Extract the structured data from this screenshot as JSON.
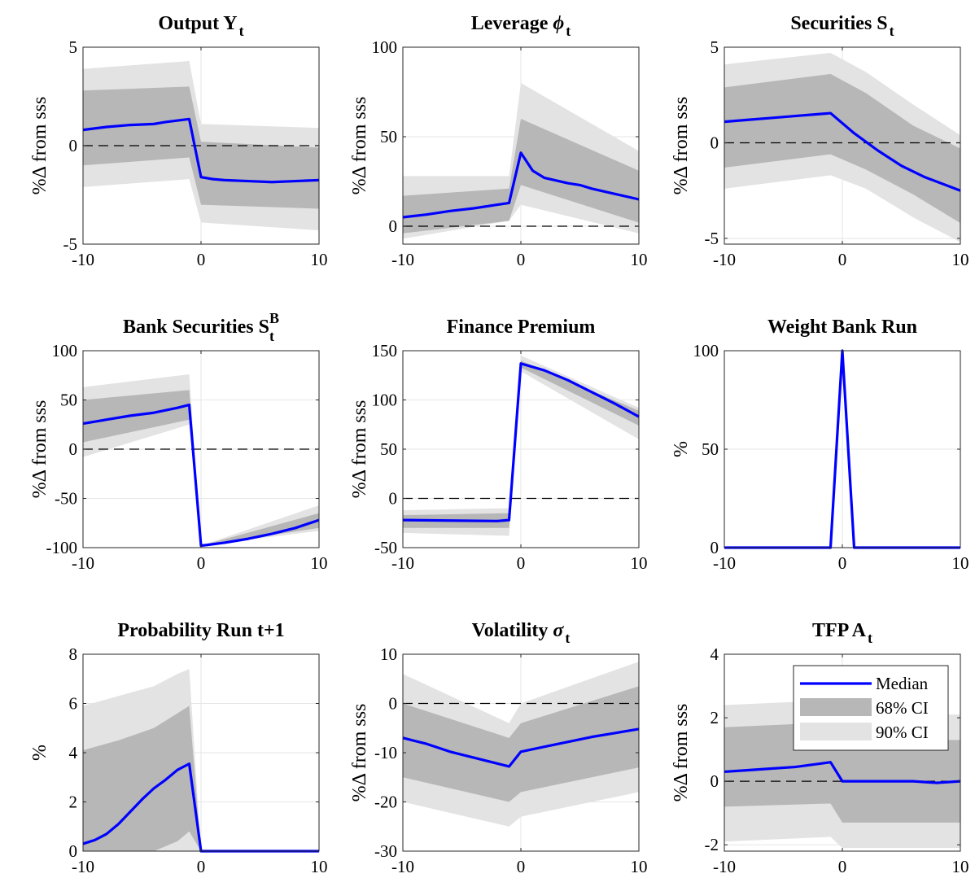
{
  "colors": {
    "median": "#0000ff",
    "ci68": "#b7b7b7",
    "ci90": "#e3e3e3",
    "zero": "#000000"
  },
  "legend": {
    "median": "Median",
    "ci68": "68% CI",
    "ci90": "90% CI"
  },
  "chart_data": [
    {
      "type": "line",
      "title": "Output Y",
      "title_sub": "t",
      "ylabel": "%Δ from sss",
      "xlim": [
        -10,
        10
      ],
      "ylim": [
        -5,
        5
      ],
      "xticks": [
        "-10",
        "0",
        "10"
      ],
      "yticks": [
        "5",
        "0",
        "-5"
      ],
      "series": [
        {
          "name": "Median",
          "x": [
            -10,
            -8,
            -6,
            -4,
            -3,
            -1,
            0,
            1,
            2,
            4,
            6,
            8,
            10
          ],
          "y": [
            0.8,
            0.95,
            1.05,
            1.1,
            1.2,
            1.35,
            -1.6,
            -1.7,
            -1.75,
            -1.8,
            -1.85,
            -1.8,
            -1.75
          ]
        },
        {
          "name": "68% CI",
          "x": [
            -10,
            -1,
            0,
            10
          ],
          "upper": [
            2.8,
            3.0,
            0.2,
            -0.1
          ],
          "lower": [
            -1.0,
            -0.6,
            -3.0,
            -3.2
          ]
        },
        {
          "name": "90% CI",
          "x": [
            -10,
            -1,
            0,
            10
          ],
          "upper": [
            3.9,
            4.3,
            1.1,
            0.9
          ],
          "lower": [
            -2.1,
            -1.7,
            -3.9,
            -4.3
          ]
        }
      ]
    },
    {
      "type": "line",
      "title": "Leverage",
      "title_greek": "ϕ",
      "title_sub": "t",
      "ylabel": "%Δ from sss",
      "xlim": [
        -10,
        10
      ],
      "ylim": [
        -10,
        100
      ],
      "xticks": [
        "-10",
        "0",
        "10"
      ],
      "yticks": [
        "100",
        "50",
        "0"
      ],
      "series": [
        {
          "name": "Median",
          "x": [
            -10,
            -8,
            -6,
            -4,
            -2,
            -1,
            0,
            1,
            2,
            4,
            5,
            6,
            8,
            10
          ],
          "y": [
            5,
            6.5,
            8.5,
            10,
            12,
            13,
            41,
            31,
            27,
            24,
            23,
            21,
            18,
            15
          ]
        },
        {
          "name": "68% CI",
          "x": [
            -10,
            -1,
            0,
            10
          ],
          "upper": [
            17,
            21,
            60,
            31
          ],
          "lower": [
            -4,
            3,
            23,
            2
          ]
        },
        {
          "name": "90% CI",
          "x": [
            -10,
            -1,
            0,
            10
          ],
          "upper": [
            28,
            28,
            80,
            42
          ],
          "lower": [
            -7,
            3,
            12,
            -4
          ]
        }
      ]
    },
    {
      "type": "line",
      "title": "Securities S",
      "title_sub": "t",
      "ylabel": "%Δ from sss",
      "xlim": [
        -10,
        10
      ],
      "ylim": [
        -5.3,
        5
      ],
      "xticks": [
        "-10",
        "0",
        "10"
      ],
      "yticks": [
        "5",
        "0",
        "-5"
      ],
      "series": [
        {
          "name": "Median",
          "x": [
            -10,
            -8,
            -6,
            -4,
            -2,
            -1,
            1,
            3,
            5,
            7,
            10
          ],
          "y": [
            1.1,
            1.2,
            1.3,
            1.4,
            1.5,
            1.55,
            0.5,
            -0.4,
            -1.2,
            -1.8,
            -2.5
          ]
        },
        {
          "name": "68% CI",
          "x": [
            -10,
            -1,
            2,
            6,
            10
          ],
          "upper": [
            2.9,
            3.6,
            2.6,
            0.9,
            -0.3
          ],
          "lower": [
            -1.3,
            -0.6,
            -1.4,
            -2.7,
            -4.2
          ]
        },
        {
          "name": "90% CI",
          "x": [
            -10,
            -1,
            2,
            6,
            10
          ],
          "upper": [
            4.1,
            4.7,
            3.7,
            2.0,
            0.4
          ],
          "lower": [
            -2.4,
            -1.7,
            -2.4,
            -3.9,
            -5.2
          ]
        }
      ]
    },
    {
      "type": "line",
      "title": "Bank Securities S",
      "title_sub": "t",
      "title_sup": "B",
      "ylabel": "%Δ from sss",
      "xlim": [
        -10,
        10
      ],
      "ylim": [
        -100,
        100
      ],
      "xticks": [
        "-10",
        "0",
        "10"
      ],
      "yticks": [
        "100",
        "50",
        "0",
        "-50",
        "-100"
      ],
      "series": [
        {
          "name": "Median",
          "x": [
            -10,
            -8,
            -6,
            -4,
            -2,
            -1,
            0,
            2,
            4,
            6,
            8,
            10
          ],
          "y": [
            26,
            30,
            34,
            37,
            42,
            45,
            -98,
            -95,
            -91,
            -86,
            -80,
            -72
          ]
        },
        {
          "name": "68% CI",
          "x": [
            -10,
            -1,
            0,
            10
          ],
          "upper": [
            50,
            60,
            -98,
            -65
          ],
          "lower": [
            7,
            30,
            -98,
            -80
          ]
        },
        {
          "name": "90% CI",
          "x": [
            -10,
            -1,
            0,
            10
          ],
          "upper": [
            63,
            76,
            -98,
            -57
          ],
          "lower": [
            -8,
            25,
            -98,
            -83
          ]
        }
      ]
    },
    {
      "type": "line",
      "title": "Finance Premium",
      "ylabel": "%Δ from sss",
      "xlim": [
        -10,
        10
      ],
      "ylim": [
        -50,
        150
      ],
      "xticks": [
        "-10",
        "0",
        "10"
      ],
      "yticks": [
        "150",
        "100",
        "50",
        "0",
        "-50"
      ],
      "series": [
        {
          "name": "Median",
          "x": [
            -10,
            -6,
            -2,
            -1,
            0,
            2,
            4,
            6,
            8,
            10
          ],
          "y": [
            -22,
            -22.5,
            -23,
            -22,
            137,
            130,
            120,
            108,
            96,
            83
          ]
        },
        {
          "name": "68% CI",
          "x": [
            -10,
            -1,
            0,
            10
          ],
          "upper": [
            -17,
            -15,
            140,
            89
          ],
          "lower": [
            -30,
            -30,
            133,
            74
          ]
        },
        {
          "name": "90% CI",
          "x": [
            -10,
            -1,
            0,
            10
          ],
          "upper": [
            -12,
            -10,
            145,
            92
          ],
          "lower": [
            -35,
            -38,
            129,
            60
          ]
        }
      ]
    },
    {
      "type": "line",
      "title": "Weight Bank Run",
      "ylabel": "%",
      "xlim": [
        -10,
        10
      ],
      "ylim": [
        0,
        100
      ],
      "xticks": [
        "-10",
        "0",
        "10"
      ],
      "yticks": [
        "100",
        "50",
        "0"
      ],
      "series": [
        {
          "name": "Median",
          "x": [
            -10,
            -1,
            0,
            1,
            10
          ],
          "y": [
            0,
            0,
            100,
            0,
            0
          ]
        },
        {
          "name": "68% CI",
          "x": [
            -10,
            -1,
            0,
            1,
            10
          ],
          "upper": [
            0,
            0,
            100,
            0,
            0
          ],
          "lower": [
            0,
            0,
            100,
            0,
            0
          ]
        },
        {
          "name": "90% CI",
          "x": [
            -10,
            -1,
            0,
            1,
            10
          ],
          "upper": [
            0,
            0,
            100,
            0,
            0
          ],
          "lower": [
            0,
            0,
            100,
            0,
            0
          ]
        }
      ]
    },
    {
      "type": "line",
      "title": "Probability Run t+1",
      "ylabel": "%",
      "xlim": [
        -10,
        10
      ],
      "ylim": [
        0,
        8
      ],
      "xticks": [
        "-10",
        "0",
        "10"
      ],
      "yticks": [
        "8",
        "6",
        "4",
        "2",
        "0"
      ],
      "series": [
        {
          "name": "Median",
          "x": [
            -10,
            -9,
            -8,
            -7,
            -6,
            -5,
            -4,
            -3,
            -2,
            -1,
            0,
            10
          ],
          "y": [
            0.3,
            0.45,
            0.7,
            1.1,
            1.6,
            2.1,
            2.55,
            2.9,
            3.3,
            3.55,
            0,
            0
          ]
        },
        {
          "name": "68% CI",
          "x": [
            -10,
            -7,
            -4,
            -2,
            -1,
            0,
            10
          ],
          "upper": [
            4.1,
            4.5,
            5.0,
            5.6,
            5.9,
            0,
            0
          ],
          "lower": [
            0,
            0,
            0,
            0.4,
            0.8,
            0,
            0
          ]
        },
        {
          "name": "90% CI",
          "x": [
            -10,
            -7,
            -4,
            -2,
            -1,
            0,
            10
          ],
          "upper": [
            5.9,
            6.3,
            6.7,
            7.2,
            7.4,
            0,
            0
          ],
          "lower": [
            0,
            0,
            0,
            0,
            0,
            0,
            0
          ]
        }
      ]
    },
    {
      "type": "line",
      "title": "Volatility",
      "title_greek": "σ",
      "title_sub": "t",
      "ylabel": "%Δ from sss",
      "xlim": [
        -10,
        10
      ],
      "ylim": [
        -30,
        10
      ],
      "xticks": [
        "-10",
        "0",
        "10"
      ],
      "yticks": [
        "10",
        "0",
        "-10",
        "-20",
        "-30"
      ],
      "series": [
        {
          "name": "Median",
          "x": [
            -10,
            -8,
            -6,
            -4,
            -2,
            -1,
            0,
            2,
            4,
            6,
            8,
            10
          ],
          "y": [
            -7,
            -8.2,
            -9.8,
            -11,
            -12.2,
            -12.8,
            -9.8,
            -8.8,
            -7.8,
            -6.8,
            -6,
            -5.2
          ]
        },
        {
          "name": "68% CI",
          "x": [
            -10,
            -1,
            0,
            10
          ],
          "upper": [
            0,
            -7,
            -4,
            3.5
          ],
          "lower": [
            -15,
            -20,
            -18,
            -13
          ]
        },
        {
          "name": "90% CI",
          "x": [
            -10,
            -1,
            0,
            10
          ],
          "upper": [
            6,
            -4,
            0,
            8.5
          ],
          "lower": [
            -20,
            -25,
            -23,
            -18
          ]
        }
      ]
    },
    {
      "type": "line",
      "title": "TFP A",
      "title_sub": "t",
      "ylabel": "%Δ from sss",
      "xlim": [
        -10,
        10
      ],
      "ylim": [
        -2.2,
        4
      ],
      "xticks": [
        "-10",
        "0",
        "10"
      ],
      "yticks": [
        "4",
        "2",
        "0",
        "-2"
      ],
      "legend_position": "top-right",
      "series": [
        {
          "name": "Median",
          "x": [
            -10,
            -8,
            -6,
            -4,
            -2,
            -1,
            0,
            2,
            4,
            6,
            8,
            10
          ],
          "y": [
            0.3,
            0.35,
            0.4,
            0.45,
            0.55,
            0.6,
            0,
            0,
            0,
            0,
            -0.05,
            0
          ]
        },
        {
          "name": "68% CI",
          "x": [
            -10,
            -1,
            0,
            10
          ],
          "upper": [
            1.7,
            1.85,
            1.3,
            1.3
          ],
          "lower": [
            -0.8,
            -0.7,
            -1.3,
            -1.3
          ]
        },
        {
          "name": "90% CI",
          "x": [
            -10,
            -1,
            0,
            10
          ],
          "upper": [
            2.4,
            2.55,
            2.1,
            2.1
          ],
          "lower": [
            -1.9,
            -1.75,
            -2.1,
            -2.1
          ]
        }
      ]
    }
  ]
}
